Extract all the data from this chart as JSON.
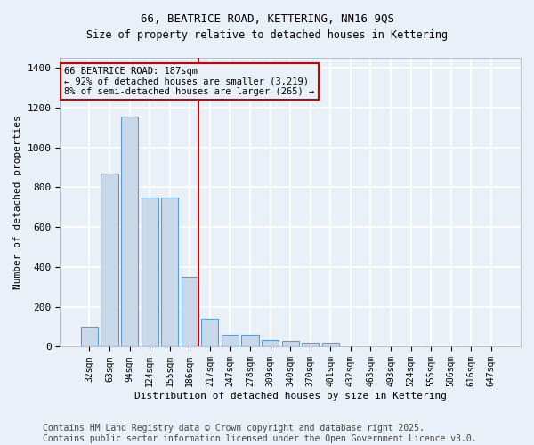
{
  "title_line1": "66, BEATRICE ROAD, KETTERING, NN16 9QS",
  "title_line2": "Size of property relative to detached houses in Kettering",
  "xlabel": "Distribution of detached houses by size in Kettering",
  "ylabel": "Number of detached properties",
  "categories": [
    "32sqm",
    "63sqm",
    "94sqm",
    "124sqm",
    "155sqm",
    "186sqm",
    "217sqm",
    "247sqm",
    "278sqm",
    "309sqm",
    "340sqm",
    "370sqm",
    "401sqm",
    "432sqm",
    "463sqm",
    "493sqm",
    "524sqm",
    "555sqm",
    "586sqm",
    "616sqm",
    "647sqm"
  ],
  "values": [
    100,
    870,
    1155,
    750,
    748,
    350,
    140,
    60,
    58,
    32,
    28,
    18,
    18,
    0,
    0,
    0,
    0,
    0,
    0,
    0,
    0
  ],
  "bar_color": "#c8d8e8",
  "bar_edge_color": "#5b9bd5",
  "highlight_index": 5,
  "highlight_line_color": "#cc0000",
  "annotation_line1": "66 BEATRICE ROAD: 187sqm",
  "annotation_line2": "← 92% of detached houses are smaller (3,219)",
  "annotation_line3": "8% of semi-detached houses are larger (265) →",
  "annotation_box_color": "#cc0000",
  "annotation_text_fontsize": 7.5,
  "ylim": [
    0,
    1450
  ],
  "yticks": [
    0,
    200,
    400,
    600,
    800,
    1000,
    1200,
    1400
  ],
  "background_color": "#eaf0f8",
  "grid_color": "#ffffff",
  "footer_line1": "Contains HM Land Registry data © Crown copyright and database right 2025.",
  "footer_line2": "Contains public sector information licensed under the Open Government Licence v3.0.",
  "footer_fontsize": 7,
  "title_fontsize": 9,
  "xlabel_fontsize": 8,
  "ylabel_fontsize": 8
}
